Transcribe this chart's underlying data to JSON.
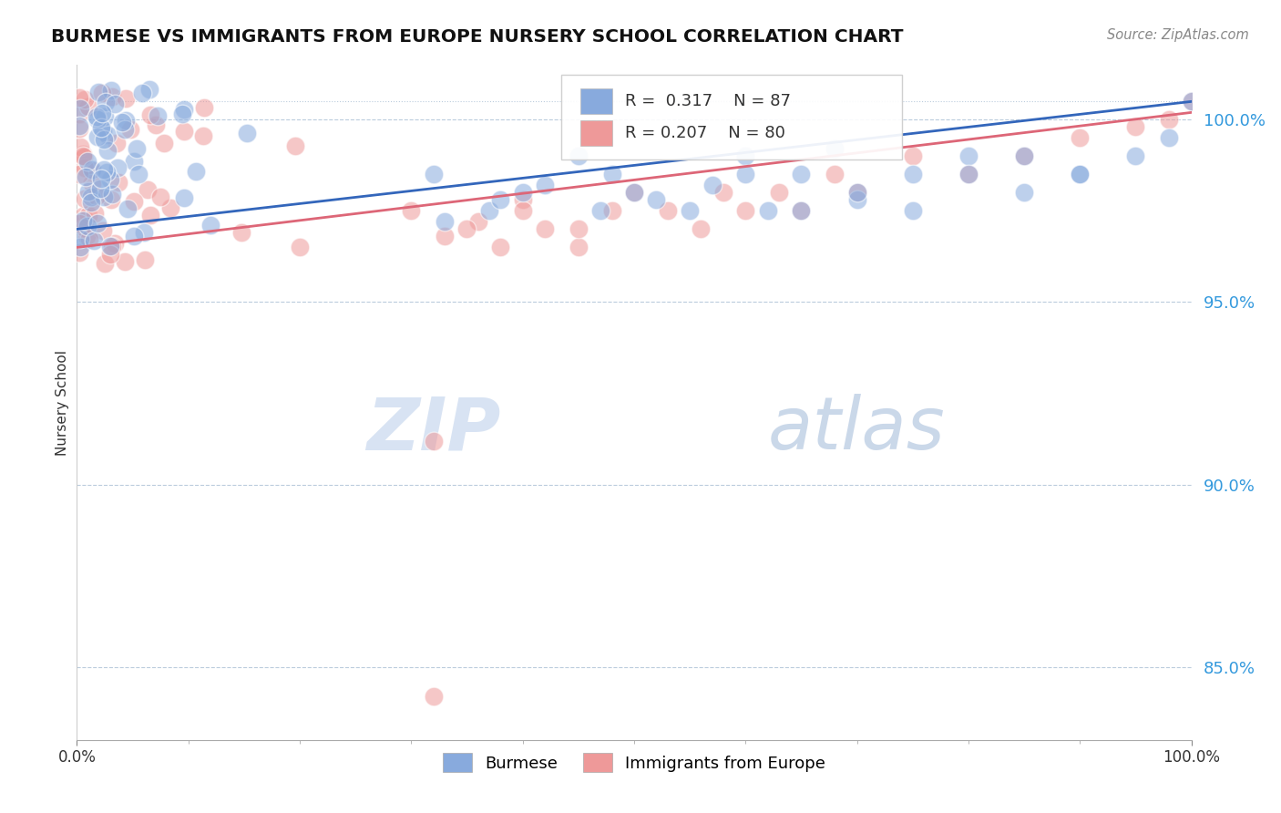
{
  "title": "BURMESE VS IMMIGRANTS FROM EUROPE NURSERY SCHOOL CORRELATION CHART",
  "source": "Source: ZipAtlas.com",
  "ylabel": "Nursery School",
  "xlim": [
    0,
    100
  ],
  "ylim": [
    83,
    101.5
  ],
  "yticks": [
    85,
    90,
    95,
    100
  ],
  "ytick_labels": [
    "85.0%",
    "90.0%",
    "95.0%",
    "100.0%"
  ],
  "legend_r_blue": "R =  0.317",
  "legend_n_blue": "N = 87",
  "legend_r_pink": "R = 0.207",
  "legend_n_pink": "N = 80",
  "color_blue": "#88AADD",
  "color_pink": "#EE9999",
  "color_trend_blue": "#3366BB",
  "color_trend_pink": "#DD6677",
  "watermark_zip": "ZIP",
  "watermark_atlas": "atlas",
  "blue_trend_start": 97.0,
  "blue_trend_end": 100.5,
  "pink_trend_start": 96.5,
  "pink_trend_end": 100.2
}
